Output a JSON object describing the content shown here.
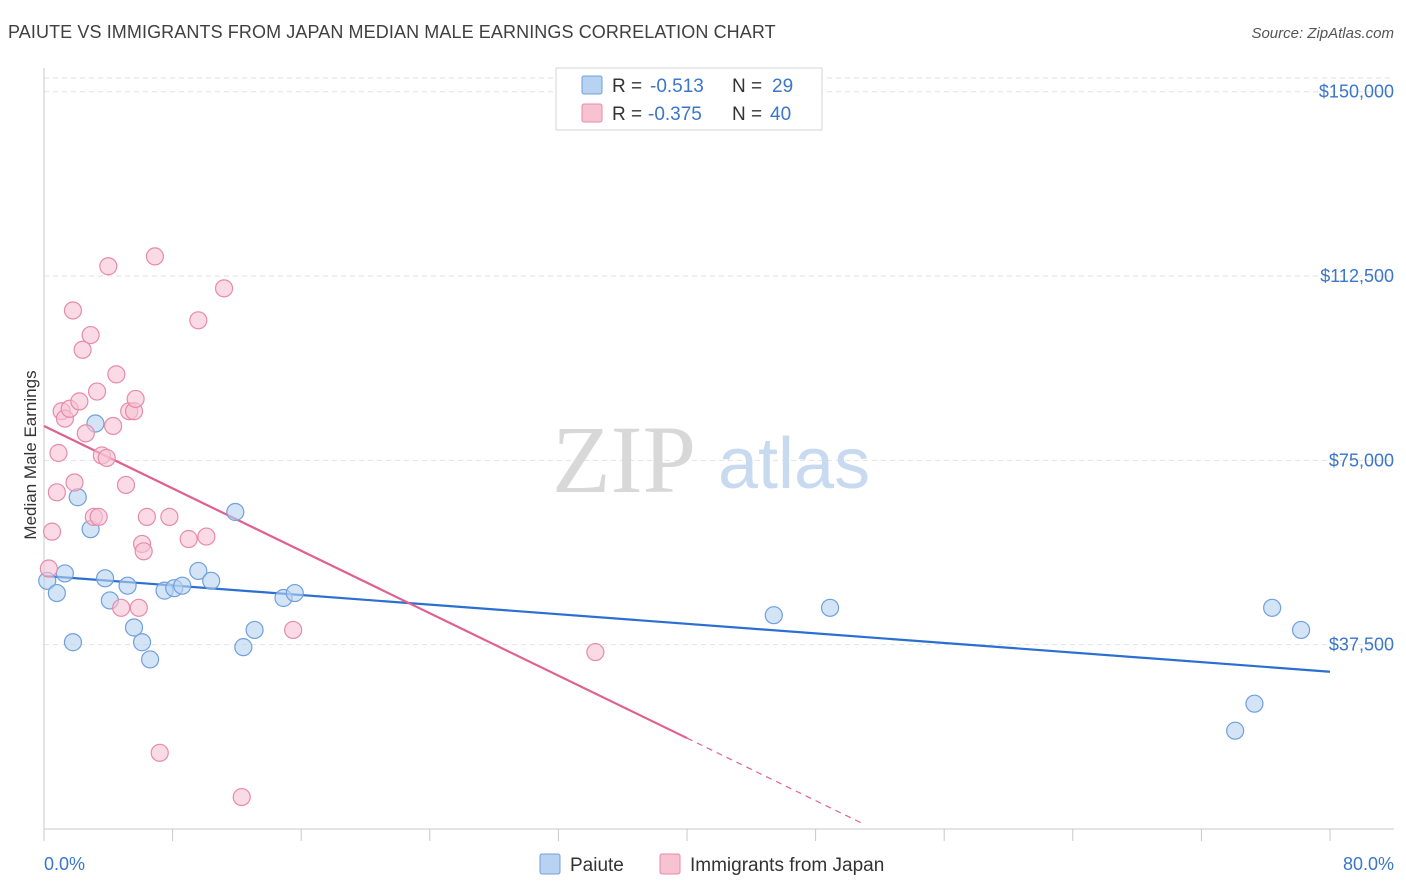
{
  "chart_data": {
    "type": "scatter",
    "title": "PAIUTE VS IMMIGRANTS FROM JAPAN MEDIAN MALE EARNINGS CORRELATION CHART",
    "source": "Source: ZipAtlas.com",
    "ylabel": "Median Male Earnings",
    "xlabel": "",
    "xlim": [
      0,
      80
    ],
    "ylim": [
      0,
      153000
    ],
    "x_tick_labels": [
      "0.0%",
      "80.0%"
    ],
    "y_ticks": [
      37500,
      75000,
      112500,
      150000
    ],
    "y_tick_labels": [
      "$37,500",
      "$75,000",
      "$112,500",
      "$150,000"
    ],
    "watermark": {
      "zip": "ZIP",
      "atlas": "atlas"
    },
    "legend": {
      "rows": [
        {
          "r_label": "R =",
          "r_value": "-0.513",
          "n_label": "N =",
          "n_value": "29"
        },
        {
          "r_label": "R =",
          "r_value": "-0.375",
          "n_label": "N =",
          "n_value": "40"
        }
      ]
    },
    "series": [
      {
        "name": "Paiute",
        "color": "#6fa0dc",
        "fill": "#b8d2f2",
        "line_color": "#2b6fd1",
        "trend": {
          "x0": 0,
          "y0": 51500,
          "x1": 80,
          "y1": 32000
        },
        "points": [
          [
            0.2,
            50500
          ],
          [
            0.8,
            48000
          ],
          [
            1.3,
            52000
          ],
          [
            1.8,
            38000
          ],
          [
            2.1,
            67500
          ],
          [
            2.9,
            61000
          ],
          [
            3.2,
            82500
          ],
          [
            3.8,
            51000
          ],
          [
            4.1,
            46500
          ],
          [
            5.2,
            49500
          ],
          [
            5.6,
            41000
          ],
          [
            6.1,
            38000
          ],
          [
            6.6,
            34500
          ],
          [
            7.5,
            48500
          ],
          [
            8.1,
            49000
          ],
          [
            8.6,
            49500
          ],
          [
            9.6,
            52500
          ],
          [
            10.4,
            50500
          ],
          [
            11.9,
            64500
          ],
          [
            12.4,
            37000
          ],
          [
            13.1,
            40500
          ],
          [
            14.9,
            47000
          ],
          [
            15.6,
            48000
          ],
          [
            45.4,
            43500
          ],
          [
            48.9,
            45000
          ],
          [
            74.1,
            20000
          ],
          [
            75.3,
            25500
          ],
          [
            76.4,
            45000
          ],
          [
            78.2,
            40500
          ]
        ]
      },
      {
        "name": "Immigrants from Japan",
        "color": "#e88aaa",
        "fill": "#f7c3d3",
        "line_color": "#e0608f",
        "trend": {
          "x0": 0,
          "y0": 82000,
          "x1": 40,
          "y1": 18500
        },
        "trend_dashed": {
          "x0": 40,
          "y0": 18500,
          "x1": 51,
          "y1": 1000
        },
        "points": [
          [
            0.3,
            53000
          ],
          [
            0.5,
            60500
          ],
          [
            0.8,
            68500
          ],
          [
            0.9,
            76500
          ],
          [
            1.1,
            85000
          ],
          [
            1.3,
            83500
          ],
          [
            1.6,
            85500
          ],
          [
            1.8,
            105500
          ],
          [
            1.9,
            70500
          ],
          [
            2.2,
            87000
          ],
          [
            2.4,
            97500
          ],
          [
            2.6,
            80500
          ],
          [
            2.9,
            100500
          ],
          [
            3.1,
            63500
          ],
          [
            3.4,
            63500
          ],
          [
            3.3,
            89000
          ],
          [
            3.6,
            76000
          ],
          [
            3.9,
            75500
          ],
          [
            4.0,
            114500
          ],
          [
            4.3,
            82000
          ],
          [
            4.5,
            92500
          ],
          [
            4.8,
            45000
          ],
          [
            5.1,
            70000
          ],
          [
            5.3,
            85000
          ],
          [
            5.6,
            85000
          ],
          [
            5.7,
            87500
          ],
          [
            5.9,
            45000
          ],
          [
            6.1,
            58000
          ],
          [
            6.2,
            56500
          ],
          [
            6.4,
            63500
          ],
          [
            6.9,
            116500
          ],
          [
            7.2,
            15500
          ],
          [
            7.8,
            63500
          ],
          [
            9.0,
            59000
          ],
          [
            9.6,
            103500
          ],
          [
            10.1,
            59500
          ],
          [
            11.2,
            110000
          ],
          [
            12.3,
            6500
          ],
          [
            15.5,
            40500
          ],
          [
            34.3,
            36000
          ]
        ]
      }
    ]
  }
}
